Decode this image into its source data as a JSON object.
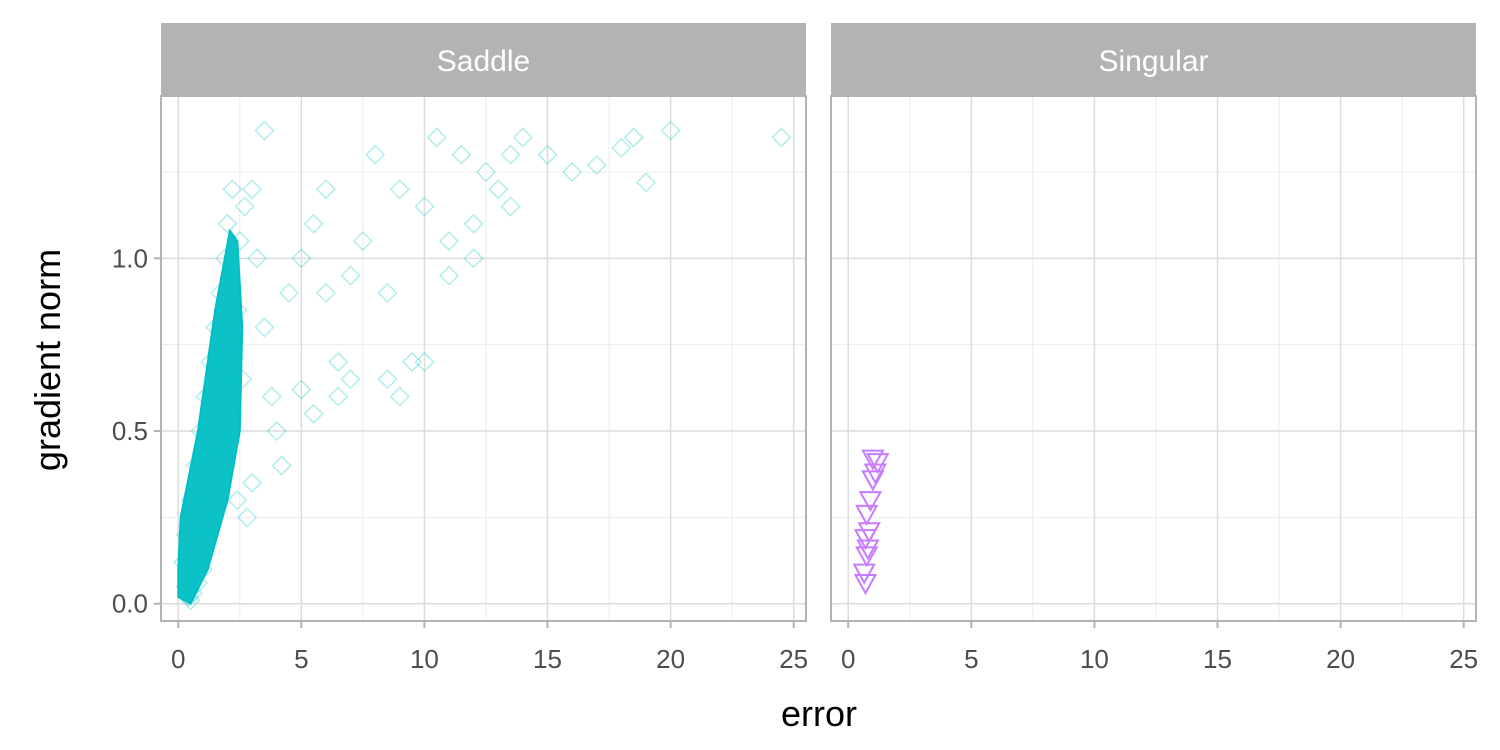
{
  "chart_data": {
    "type": "scatter",
    "xlabel": "error",
    "ylabel": "gradient norm",
    "xlim": [
      -0.7,
      25.5
    ],
    "ylim": [
      -0.05,
      1.47
    ],
    "x_ticks": [
      0,
      5,
      10,
      15,
      20,
      25
    ],
    "x_tick_labels": [
      "0",
      "5",
      "10",
      "15",
      "20",
      "25"
    ],
    "y_ticks": [
      0.0,
      0.5,
      1.0
    ],
    "y_tick_labels": [
      "0.0",
      "0.5",
      "1.0"
    ],
    "grid": true,
    "legend": "none",
    "panels": [
      {
        "name": "Saddle",
        "color": "#00BFC4",
        "marker": "diamond-open",
        "opacity": "low (dense overplotting)",
        "points": [
          [
            0.3,
            0.05
          ],
          [
            0.4,
            0.02
          ],
          [
            0.5,
            0.01
          ],
          [
            0.6,
            0.03
          ],
          [
            0.8,
            0.06
          ],
          [
            1.0,
            0.1
          ],
          [
            0.2,
            0.12
          ],
          [
            0.3,
            0.2
          ],
          [
            0.5,
            0.3
          ],
          [
            0.7,
            0.4
          ],
          [
            0.9,
            0.5
          ],
          [
            1.1,
            0.6
          ],
          [
            1.3,
            0.7
          ],
          [
            1.5,
            0.8
          ],
          [
            1.7,
            0.9
          ],
          [
            1.9,
            1.0
          ],
          [
            2.0,
            1.1
          ],
          [
            2.2,
            1.2
          ],
          [
            1.0,
            0.25
          ],
          [
            1.4,
            0.35
          ],
          [
            1.8,
            0.45
          ],
          [
            2.2,
            0.55
          ],
          [
            2.6,
            0.65
          ],
          [
            0.8,
            0.2
          ],
          [
            1.2,
            0.3
          ],
          [
            1.6,
            0.42
          ],
          [
            2.0,
            0.62
          ],
          [
            2.4,
            0.85
          ],
          [
            2.5,
            1.05
          ],
          [
            2.7,
            1.15
          ],
          [
            3.0,
            1.2
          ],
          [
            3.2,
            1.0
          ],
          [
            3.5,
            0.8
          ],
          [
            3.8,
            0.6
          ],
          [
            4.0,
            0.5
          ],
          [
            4.5,
            0.9
          ],
          [
            5.0,
            1.0
          ],
          [
            5.5,
            1.1
          ],
          [
            6.0,
            1.2
          ],
          [
            6.5,
            0.7
          ],
          [
            7.0,
            0.65
          ],
          [
            7.5,
            1.05
          ],
          [
            8.0,
            1.3
          ],
          [
            8.5,
            0.65
          ],
          [
            9.0,
            1.2
          ],
          [
            9.5,
            0.7
          ],
          [
            10.0,
            1.15
          ],
          [
            10.5,
            1.35
          ],
          [
            11.0,
            1.05
          ],
          [
            11.5,
            1.3
          ],
          [
            12.0,
            1.1
          ],
          [
            12.5,
            1.25
          ],
          [
            13.0,
            1.2
          ],
          [
            13.5,
            1.3
          ],
          [
            14.0,
            1.35
          ],
          [
            15.0,
            1.3
          ],
          [
            16.0,
            1.25
          ],
          [
            17.0,
            1.27
          ],
          [
            18.0,
            1.32
          ],
          [
            18.5,
            1.35
          ],
          [
            19.0,
            1.22
          ],
          [
            20.0,
            1.37
          ],
          [
            24.5,
            1.35
          ],
          [
            3.5,
            1.37
          ],
          [
            5.5,
            0.55
          ],
          [
            6.0,
            0.9
          ],
          [
            7.0,
            0.95
          ],
          [
            8.5,
            0.9
          ],
          [
            9.0,
            0.6
          ],
          [
            10.0,
            0.7
          ],
          [
            11.0,
            0.95
          ],
          [
            12.0,
            1.0
          ],
          [
            13.5,
            1.15
          ],
          [
            5.0,
            0.62
          ],
          [
            6.5,
            0.6
          ],
          [
            4.2,
            0.4
          ],
          [
            3.0,
            0.35
          ],
          [
            2.8,
            0.25
          ],
          [
            2.4,
            0.3
          ]
        ]
      },
      {
        "name": "Singular",
        "color": "#C77CFF",
        "marker": "triangle-down-open",
        "points": [
          [
            0.7,
            0.06
          ],
          [
            0.65,
            0.09
          ],
          [
            0.75,
            0.14
          ],
          [
            0.8,
            0.16
          ],
          [
            0.7,
            0.19
          ],
          [
            0.85,
            0.21
          ],
          [
            0.75,
            0.26
          ],
          [
            0.9,
            0.3
          ],
          [
            1.0,
            0.36
          ],
          [
            1.1,
            0.38
          ],
          [
            1.2,
            0.41
          ],
          [
            1.0,
            0.42
          ]
        ]
      }
    ]
  }
}
